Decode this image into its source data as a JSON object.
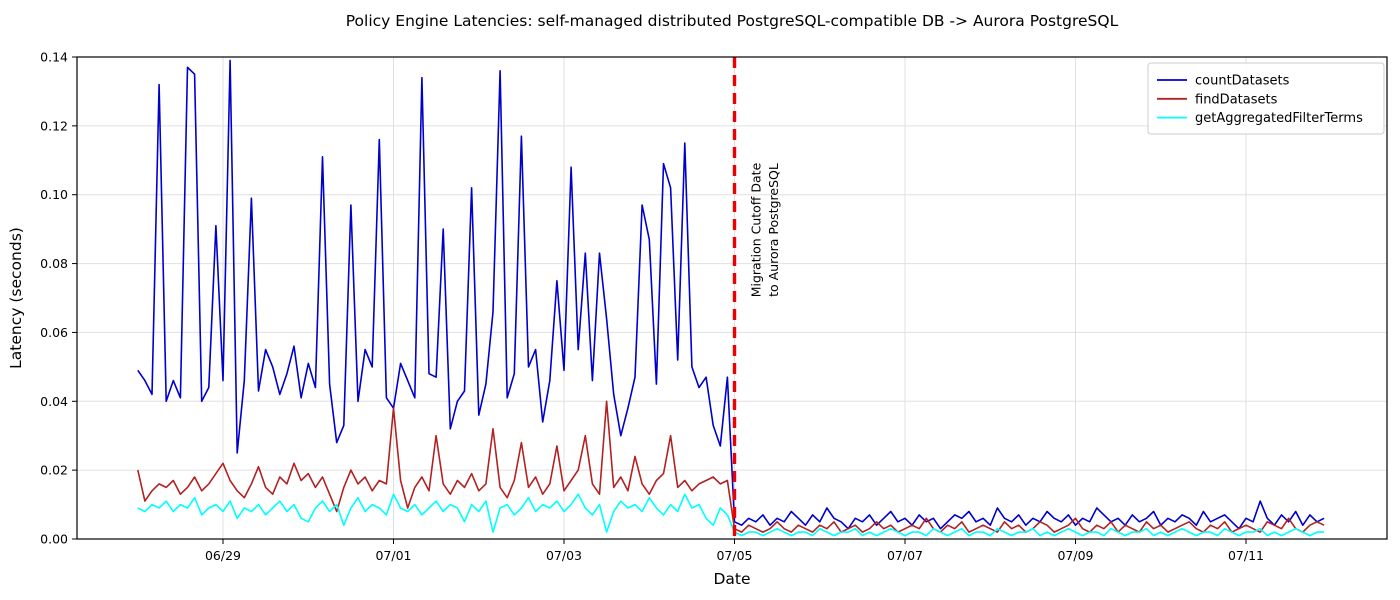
{
  "figure": {
    "title": "Policy Engine Latencies: self-managed distributed PostgreSQL-compatible DB -> Aurora PostgreSQL",
    "background_color": "#ffffff"
  },
  "chart_data": {
    "type": "line",
    "title": "Policy Engine Latencies: self-managed distributed PostgreSQL-compatible DB -> Aurora PostgreSQL",
    "xlabel": "Date",
    "ylabel": "Latency (seconds)",
    "ylim": [
      0.0,
      0.14
    ],
    "ytick_labels": [
      "0.00",
      "0.02",
      "0.04",
      "0.06",
      "0.08",
      "0.10",
      "0.12",
      "0.14"
    ],
    "yticks": [
      0.0,
      0.02,
      0.04,
      0.06,
      0.08,
      0.1,
      0.12,
      0.14
    ],
    "xtick_labels": [
      "06/29",
      "07/01",
      "07/03",
      "07/05",
      "07/07",
      "07/09",
      "07/11"
    ],
    "xtick_days": [
      1,
      3,
      5,
      7,
      9,
      11,
      13
    ],
    "x_start": "06/28 00:00",
    "x_end": "07/11 22:00",
    "sample_interval_hours": 2,
    "points_per_day": 12,
    "grid": true,
    "grid_color": "#e0e0e0",
    "legend_position": "upper right",
    "cutoff_line": {
      "x_day": 7,
      "date_label": "07/05",
      "color": "#ee0000",
      "style": "dashed",
      "annotation_lines": [
        "Migration Cutoff Date",
        "to Aurora PostgreSQL"
      ],
      "annotation_color": "#ee0000"
    },
    "series": [
      {
        "name": "countDatasets",
        "color": "#0000cd",
        "values": [
          0.049,
          0.046,
          0.042,
          0.132,
          0.04,
          0.046,
          0.041,
          0.137,
          0.135,
          0.04,
          0.044,
          0.091,
          0.046,
          0.139,
          0.025,
          0.046,
          0.099,
          0.043,
          0.055,
          0.05,
          0.042,
          0.048,
          0.056,
          0.041,
          0.051,
          0.044,
          0.111,
          0.045,
          0.028,
          0.033,
          0.097,
          0.04,
          0.055,
          0.05,
          0.116,
          0.041,
          0.038,
          0.051,
          0.046,
          0.041,
          0.134,
          0.048,
          0.047,
          0.09,
          0.032,
          0.04,
          0.043,
          0.102,
          0.036,
          0.045,
          0.066,
          0.136,
          0.041,
          0.048,
          0.117,
          0.05,
          0.055,
          0.034,
          0.046,
          0.075,
          0.049,
          0.108,
          0.055,
          0.083,
          0.046,
          0.083,
          0.064,
          0.042,
          0.03,
          0.038,
          0.047,
          0.097,
          0.087,
          0.045,
          0.109,
          0.102,
          0.052,
          0.115,
          0.05,
          0.044,
          0.047,
          0.033,
          0.027,
          0.047,
          0.005,
          0.004,
          0.006,
          0.005,
          0.007,
          0.004,
          0.006,
          0.005,
          0.008,
          0.006,
          0.004,
          0.007,
          0.005,
          0.009,
          0.006,
          0.005,
          0.003,
          0.006,
          0.005,
          0.007,
          0.004,
          0.006,
          0.008,
          0.005,
          0.006,
          0.004,
          0.007,
          0.005,
          0.006,
          0.003,
          0.005,
          0.007,
          0.006,
          0.008,
          0.005,
          0.006,
          0.004,
          0.009,
          0.006,
          0.005,
          0.007,
          0.004,
          0.006,
          0.005,
          0.008,
          0.006,
          0.005,
          0.007,
          0.004,
          0.006,
          0.005,
          0.009,
          0.007,
          0.005,
          0.006,
          0.004,
          0.007,
          0.005,
          0.006,
          0.008,
          0.004,
          0.006,
          0.005,
          0.007,
          0.006,
          0.004,
          0.008,
          0.005,
          0.006,
          0.007,
          0.005,
          0.003,
          0.006,
          0.005,
          0.011,
          0.006,
          0.004,
          0.007,
          0.005,
          0.008,
          0.004,
          0.007,
          0.005,
          0.006
        ]
      },
      {
        "name": "findDatasets",
        "color": "#b22222",
        "values": [
          0.02,
          0.011,
          0.014,
          0.016,
          0.015,
          0.017,
          0.013,
          0.015,
          0.018,
          0.014,
          0.016,
          0.019,
          0.022,
          0.017,
          0.014,
          0.012,
          0.016,
          0.021,
          0.015,
          0.013,
          0.018,
          0.016,
          0.022,
          0.017,
          0.019,
          0.015,
          0.018,
          0.013,
          0.008,
          0.015,
          0.02,
          0.016,
          0.018,
          0.014,
          0.017,
          0.016,
          0.038,
          0.017,
          0.009,
          0.015,
          0.018,
          0.014,
          0.03,
          0.016,
          0.013,
          0.017,
          0.015,
          0.019,
          0.014,
          0.016,
          0.032,
          0.015,
          0.012,
          0.017,
          0.028,
          0.015,
          0.018,
          0.013,
          0.016,
          0.027,
          0.014,
          0.017,
          0.02,
          0.03,
          0.016,
          0.013,
          0.04,
          0.015,
          0.018,
          0.014,
          0.024,
          0.016,
          0.013,
          0.017,
          0.019,
          0.03,
          0.015,
          0.017,
          0.014,
          0.016,
          0.017,
          0.018,
          0.016,
          0.017,
          0.003,
          0.002,
          0.004,
          0.003,
          0.002,
          0.003,
          0.005,
          0.003,
          0.002,
          0.004,
          0.003,
          0.002,
          0.004,
          0.003,
          0.005,
          0.002,
          0.003,
          0.004,
          0.002,
          0.003,
          0.005,
          0.003,
          0.004,
          0.002,
          0.003,
          0.004,
          0.003,
          0.006,
          0.003,
          0.002,
          0.004,
          0.003,
          0.005,
          0.002,
          0.003,
          0.004,
          0.003,
          0.002,
          0.005,
          0.003,
          0.004,
          0.002,
          0.003,
          0.005,
          0.004,
          0.002,
          0.003,
          0.004,
          0.006,
          0.003,
          0.002,
          0.004,
          0.003,
          0.005,
          0.002,
          0.004,
          0.003,
          0.002,
          0.005,
          0.003,
          0.004,
          0.002,
          0.003,
          0.004,
          0.005,
          0.003,
          0.002,
          0.004,
          0.003,
          0.005,
          0.002,
          0.003,
          0.004,
          0.003,
          0.002,
          0.005,
          0.004,
          0.003,
          0.006,
          0.003,
          0.002,
          0.004,
          0.005,
          0.004
        ]
      },
      {
        "name": "getAggregatedFilterTerms",
        "color": "#00ffff",
        "values": [
          0.009,
          0.008,
          0.01,
          0.009,
          0.011,
          0.008,
          0.01,
          0.009,
          0.012,
          0.007,
          0.009,
          0.01,
          0.008,
          0.011,
          0.006,
          0.009,
          0.008,
          0.01,
          0.007,
          0.009,
          0.011,
          0.008,
          0.01,
          0.006,
          0.005,
          0.009,
          0.011,
          0.008,
          0.01,
          0.004,
          0.009,
          0.012,
          0.008,
          0.01,
          0.009,
          0.007,
          0.013,
          0.009,
          0.008,
          0.01,
          0.007,
          0.009,
          0.011,
          0.008,
          0.01,
          0.009,
          0.005,
          0.01,
          0.008,
          0.011,
          0.002,
          0.009,
          0.01,
          0.007,
          0.009,
          0.012,
          0.008,
          0.01,
          0.009,
          0.011,
          0.008,
          0.01,
          0.013,
          0.009,
          0.007,
          0.01,
          0.002,
          0.008,
          0.011,
          0.009,
          0.01,
          0.008,
          0.012,
          0.009,
          0.007,
          0.01,
          0.008,
          0.013,
          0.009,
          0.01,
          0.006,
          0.004,
          0.009,
          0.007,
          0.002,
          0.001,
          0.002,
          0.002,
          0.001,
          0.002,
          0.003,
          0.002,
          0.001,
          0.002,
          0.002,
          0.001,
          0.003,
          0.002,
          0.001,
          0.002,
          0.002,
          0.003,
          0.001,
          0.002,
          0.001,
          0.002,
          0.003,
          0.002,
          0.001,
          0.002,
          0.002,
          0.001,
          0.003,
          0.002,
          0.001,
          0.002,
          0.003,
          0.001,
          0.002,
          0.002,
          0.001,
          0.003,
          0.002,
          0.001,
          0.002,
          0.002,
          0.003,
          0.001,
          0.002,
          0.001,
          0.002,
          0.003,
          0.002,
          0.001,
          0.002,
          0.002,
          0.001,
          0.003,
          0.002,
          0.001,
          0.002,
          0.002,
          0.003,
          0.001,
          0.002,
          0.001,
          0.002,
          0.003,
          0.002,
          0.001,
          0.002,
          0.002,
          0.001,
          0.003,
          0.002,
          0.001,
          0.002,
          0.002,
          0.003,
          0.001,
          0.002,
          0.001,
          0.002,
          0.003,
          0.002,
          0.001,
          0.002,
          0.002
        ]
      }
    ]
  },
  "legend": {
    "entries": [
      "countDatasets",
      "findDatasets",
      "getAggregatedFilterTerms"
    ]
  }
}
